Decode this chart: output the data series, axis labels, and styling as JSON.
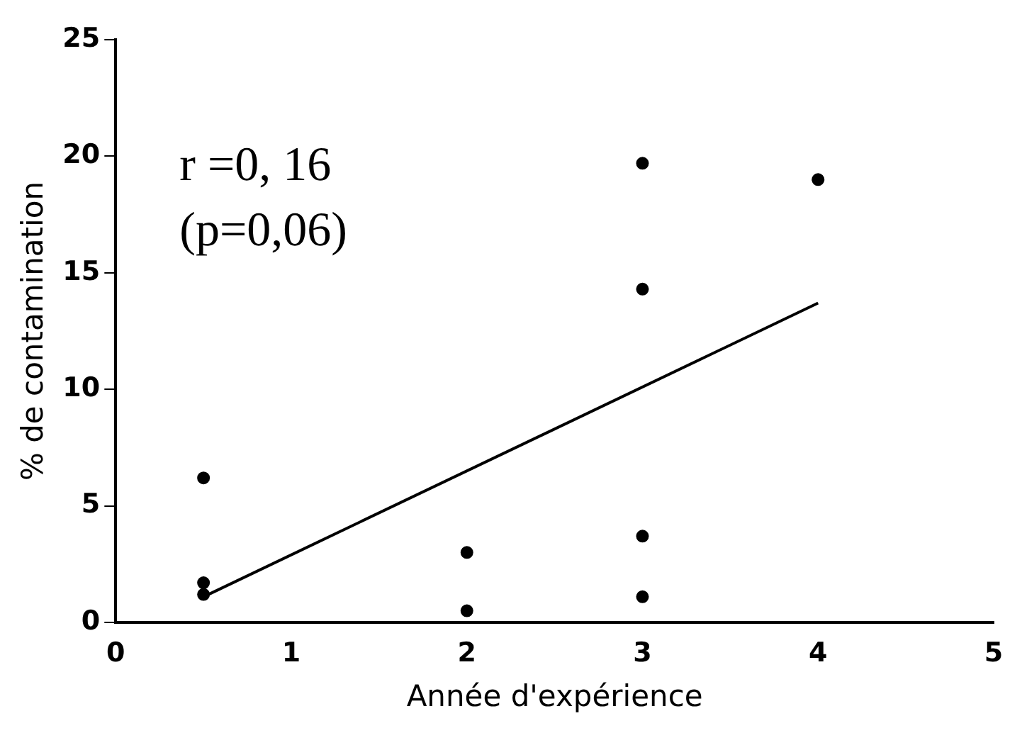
{
  "chart_data": {
    "type": "scatter",
    "xlabel": "Année d'expérience",
    "ylabel": "% de contamination",
    "xlim": [
      0,
      5
    ],
    "xticks": [
      0,
      1,
      2,
      3,
      4,
      5
    ],
    "ylim": [
      0,
      25
    ],
    "yticks": [
      0,
      5,
      10,
      15,
      20,
      25
    ],
    "grid": false,
    "legend": false,
    "annotations": [
      "r =0, 16",
      "(p=0,06)"
    ],
    "series": [
      {
        "type": "scatter",
        "marker": "circle",
        "color": "#000000",
        "x": [
          0.5,
          0.5,
          0.5,
          2,
          2,
          3,
          3,
          3,
          3,
          4
        ],
        "values": [
          6.2,
          1.7,
          1.2,
          3,
          0.5,
          19.7,
          14.3,
          3.7,
          1.1,
          19
        ]
      },
      {
        "type": "line",
        "color": "#000000",
        "x": [
          0.5,
          4
        ],
        "values": [
          1.1,
          13.7
        ]
      }
    ]
  }
}
